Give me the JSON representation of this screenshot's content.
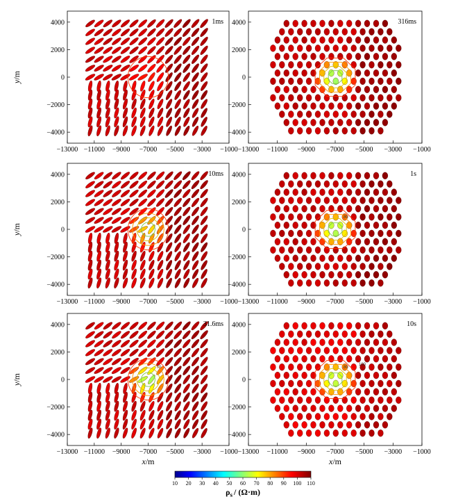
{
  "chart_data": {
    "type": "scatter",
    "colorbar": {
      "ticks": [
        10,
        20,
        30,
        40,
        50,
        60,
        70,
        80,
        90,
        100,
        110
      ],
      "range": [
        10,
        110
      ],
      "label_symbol": "ρ",
      "label_subscript": "s",
      "label_unit": "/ (Ω·m)",
      "colormap": "jet"
    },
    "xticks": [
      "−13000",
      "−11000",
      "−9000",
      "−7000",
      "−5000",
      "−3000",
      "−1000"
    ],
    "yticks": [
      "4000",
      "2000",
      "0",
      "−2000",
      "−4000"
    ],
    "xlim": [
      -13000,
      -1000
    ],
    "ylim": [
      -4800,
      4800
    ],
    "ylabel_italic": "y",
    "ylabel_unit": "/m",
    "xlabel_italic": "x",
    "xlabel_unit": "/m",
    "panels": [
      {
        "time": "1ms",
        "position": "top-left",
        "anomaly_center": [
          -7000,
          0
        ],
        "anomaly_radius": 1500,
        "min_rho": 95,
        "bg_rho": 100,
        "contours": []
      },
      {
        "time": "316ms",
        "position": "top-right",
        "anomaly_center": [
          -7000,
          0
        ],
        "anomaly_radius": 1500,
        "min_rho": 60,
        "bg_rho": 101,
        "contours": []
      },
      {
        "time": "10ms",
        "position": "middle-left",
        "anomaly_center": [
          -7000,
          0
        ],
        "anomaly_radius": 1500,
        "min_rho": 75,
        "bg_rho": 100,
        "contours": []
      },
      {
        "time": "1s",
        "position": "middle-right",
        "anomaly_center": [
          -7000,
          0
        ],
        "anomaly_radius": 1500,
        "min_rho": 62,
        "bg_rho": 101,
        "contours": [
          "80"
        ]
      },
      {
        "time": "31.6ms",
        "position": "bottom-left",
        "anomaly_center": [
          -7000,
          0
        ],
        "anomaly_radius": 1500,
        "min_rho": 62,
        "bg_rho": 100,
        "contours": [
          "70"
        ]
      },
      {
        "time": "10s",
        "position": "bottom-right",
        "anomaly_center": [
          -7000,
          0
        ],
        "anomaly_radius": 1500,
        "min_rho": 64,
        "bg_rho": 98,
        "contours": [
          "80",
          "100"
        ]
      }
    ]
  }
}
